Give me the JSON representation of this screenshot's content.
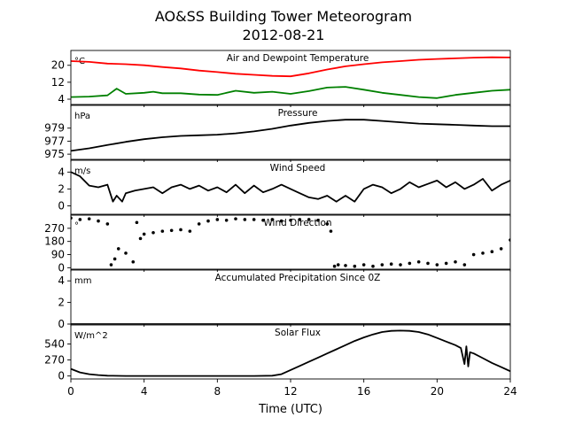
{
  "chart_data": {
    "title": "AO&SS Building Tower Meteorogram",
    "subtitle": "2012-08-21",
    "xlabel": "Time (UTC)",
    "xlim": [
      0,
      24
    ],
    "xticks": [
      0,
      4,
      8,
      12,
      16,
      20,
      24
    ],
    "panels": [
      {
        "type": "line",
        "title": "Air and Dewpoint Temperature",
        "unit": "°C",
        "ylim": [
          1.5,
          27
        ],
        "yticks": [
          4,
          12,
          20
        ],
        "series": [
          {
            "color": "#ff0000",
            "x": [
              0,
              1,
              2,
              3,
              4,
              5,
              6,
              7,
              8,
              9,
              10,
              11,
              12,
              13,
              14,
              15,
              16,
              17,
              18,
              19,
              20,
              21,
              22,
              23,
              24
            ],
            "y": [
              22,
              21.6,
              20.8,
              20.5,
              20,
              19.2,
              18.5,
              17.5,
              16.8,
              16,
              15.5,
              15,
              14.8,
              16.2,
              18,
              19.5,
              20.5,
              21.4,
              22,
              22.6,
              23,
              23.3,
              23.6,
              23.8,
              23.7
            ]
          },
          {
            "color": "#008000",
            "x": [
              0,
              1,
              2,
              2.5,
              3,
              4,
              4.5,
              5,
              6,
              7,
              8,
              9,
              10,
              11,
              12,
              13,
              14,
              15,
              16,
              17,
              18,
              19,
              20,
              21,
              22,
              23,
              24
            ],
            "y": [
              5,
              5.2,
              5.8,
              9,
              6.5,
              7,
              7.5,
              6.8,
              6.8,
              6.2,
              6,
              8,
              7,
              7.5,
              6.5,
              7.8,
              9.5,
              9.8,
              8.5,
              7,
              6,
              5,
              4.5,
              6,
              7,
              8,
              8.5
            ]
          }
        ]
      },
      {
        "type": "line",
        "title": "Pressure",
        "unit": "hPa",
        "ylim": [
          974.2,
          982.5
        ],
        "yticks": [
          975,
          977,
          979
        ],
        "series": [
          {
            "color": "#000000",
            "x": [
              0,
              1,
              2,
              3,
              4,
              5,
              6,
              7,
              8,
              9,
              10,
              11,
              12,
              13,
              14,
              15,
              16,
              17,
              18,
              19,
              20,
              21,
              22,
              23,
              24
            ],
            "y": [
              975.5,
              975.9,
              976.4,
              976.9,
              977.3,
              977.6,
              977.8,
              977.9,
              978,
              978.2,
              978.5,
              978.9,
              979.4,
              979.8,
              980.1,
              980.3,
              980.3,
              980.1,
              979.9,
              979.7,
              979.6,
              979.5,
              979.4,
              979.3,
              979.3
            ]
          }
        ]
      },
      {
        "type": "line",
        "title": "Wind Speed",
        "unit": "m/s",
        "ylim": [
          -1,
          5.4
        ],
        "yticks": [
          0,
          2,
          4
        ],
        "series": [
          {
            "color": "#000000",
            "x": [
              0,
              0.5,
              1,
              1.5,
              2,
              2.3,
              2.5,
              2.8,
              3,
              3.5,
              4,
              4.5,
              5,
              5.5,
              6,
              6.5,
              7,
              7.5,
              8,
              8.5,
              9,
              9.5,
              10,
              10.5,
              11,
              11.5,
              12,
              12.5,
              13,
              13.5,
              14,
              14.5,
              15,
              15.5,
              16,
              16.5,
              17,
              17.5,
              18,
              18.5,
              19,
              19.5,
              20,
              20.5,
              21,
              21.5,
              22,
              22.5,
              23,
              23.5,
              24
            ],
            "y": [
              4,
              3.5,
              2.4,
              2.2,
              2.5,
              0.5,
              1.2,
              0.5,
              1.5,
              1.8,
              2,
              2.2,
              1.5,
              2.2,
              2.5,
              2,
              2.4,
              1.8,
              2.2,
              1.6,
              2.5,
              1.5,
              2.4,
              1.6,
              2,
              2.5,
              2,
              1.5,
              1,
              0.8,
              1.2,
              0.5,
              1.2,
              0.5,
              2,
              2.5,
              2.2,
              1.5,
              2,
              2.8,
              2.2,
              2.6,
              3,
              2.2,
              2.8,
              2,
              2.5,
              3.2,
              1.8,
              2.5,
              3
            ]
          }
        ]
      },
      {
        "type": "scatter",
        "title": "Wind Direction",
        "unit": "°",
        "ylim": [
          -10,
          360
        ],
        "yticks": [
          0,
          90,
          180,
          270
        ],
        "series": [
          {
            "color": "#000000",
            "x": [
              0,
              0.5,
              1,
              1.5,
              2,
              2.2,
              2.4,
              2.6,
              3,
              3.4,
              3.6,
              3.8,
              4,
              4.5,
              5,
              5.5,
              6,
              6.5,
              7,
              7.5,
              8,
              8.5,
              9,
              9.5,
              10,
              10.5,
              11,
              11.5,
              12,
              12.5,
              13,
              13.5,
              14,
              14.2,
              14.4,
              14.6,
              15,
              15.5,
              16,
              16.5,
              17,
              17.5,
              18,
              18.5,
              19,
              19.5,
              20,
              20.5,
              21,
              21.5,
              22,
              22.5,
              23,
              23.5,
              24
            ],
            "y": [
              340,
              330,
              335,
              320,
              300,
              20,
              60,
              130,
              100,
              40,
              310,
              200,
              230,
              240,
              250,
              255,
              260,
              250,
              300,
              320,
              330,
              325,
              335,
              330,
              330,
              325,
              330,
              320,
              325,
              330,
              330,
              325,
              300,
              250,
              10,
              20,
              15,
              10,
              20,
              10,
              20,
              25,
              20,
              30,
              40,
              30,
              20,
              30,
              40,
              20,
              90,
              100,
              110,
              130,
              190
            ]
          }
        ]
      },
      {
        "type": "line",
        "title": "Accumulated Precipitation Since 0Z",
        "unit": "mm",
        "ylim": [
          0,
          5
        ],
        "yticks": [
          0,
          2,
          4
        ],
        "series": [
          {
            "color": "#000000",
            "x": [
              0,
              24
            ],
            "y": [
              0,
              0
            ]
          }
        ]
      },
      {
        "type": "line",
        "title": "Solar Flux",
        "unit": "W/m^2",
        "ylim": [
          -50,
          860
        ],
        "yticks": [
          0,
          270,
          540
        ],
        "series": [
          {
            "color": "#000000",
            "x": [
              0,
              0.5,
              1,
              1.5,
              2,
              3,
              4,
              5,
              6,
              7,
              8,
              9,
              10,
              11,
              11.5,
              12,
              12.5,
              13,
              13.5,
              14,
              14.5,
              15,
              15.5,
              16,
              16.5,
              17,
              17.5,
              18,
              18.5,
              19,
              19.5,
              20,
              20.5,
              21,
              21.3,
              21.5,
              21.6,
              21.7,
              21.8,
              22,
              22.5,
              23,
              23.5,
              24
            ],
            "y": [
              120,
              60,
              30,
              15,
              5,
              0,
              0,
              0,
              0,
              0,
              0,
              0,
              0,
              5,
              30,
              100,
              170,
              240,
              310,
              380,
              450,
              520,
              590,
              650,
              700,
              740,
              760,
              765,
              760,
              740,
              700,
              640,
              580,
              520,
              470,
              200,
              500,
              160,
              400,
              380,
              300,
              220,
              150,
              80
            ]
          }
        ]
      }
    ]
  }
}
